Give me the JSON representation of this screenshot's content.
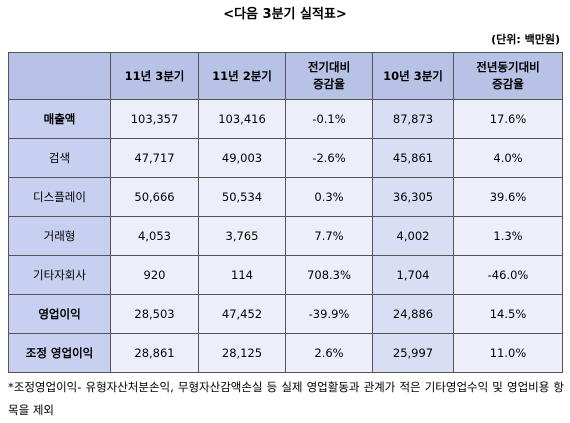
{
  "header": {
    "title": "<다음 3분기 실적표>",
    "unit": "(단위: 백만원)"
  },
  "table": {
    "columns": [
      [
        "11년 3분기"
      ],
      [
        "11년 2분기"
      ],
      [
        "전기대비",
        "증감율"
      ],
      [
        "10년 3분기"
      ],
      [
        "전년동기대비",
        "증감율"
      ]
    ],
    "rows": [
      [
        "매출액",
        "103,357",
        "103,416",
        "-0.1%",
        "87,873",
        "17.6%"
      ],
      [
        "검색",
        "47,717",
        "49,003",
        "-2.6%",
        "45,861",
        "4.0%"
      ],
      [
        "디스플레이",
        "50,666",
        "50,534",
        "0.3%",
        "36,305",
        "39.6%"
      ],
      [
        "거래형",
        "4,053",
        "3,765",
        "7.7%",
        "4,002",
        "1.3%"
      ],
      [
        "기타자회사",
        "920",
        "114",
        "708.3%",
        "1,704",
        "-46.0%"
      ],
      [
        "영업이익",
        "28,503",
        "47,452",
        "-39.9%",
        "24,886",
        "14.5%"
      ],
      [
        "조정 영업이익",
        "28,861",
        "28,125",
        "2.6%",
        "25,997",
        "11.0%"
      ]
    ],
    "bold_rows": [
      0,
      5,
      6
    ]
  },
  "footnote": "*조정영업이익- 유형자산처분손익, 무형자산감액손실 등 실제 영업활동과 관계가 적은 기타영업수익 및 영업비용 항목을 제외"
}
